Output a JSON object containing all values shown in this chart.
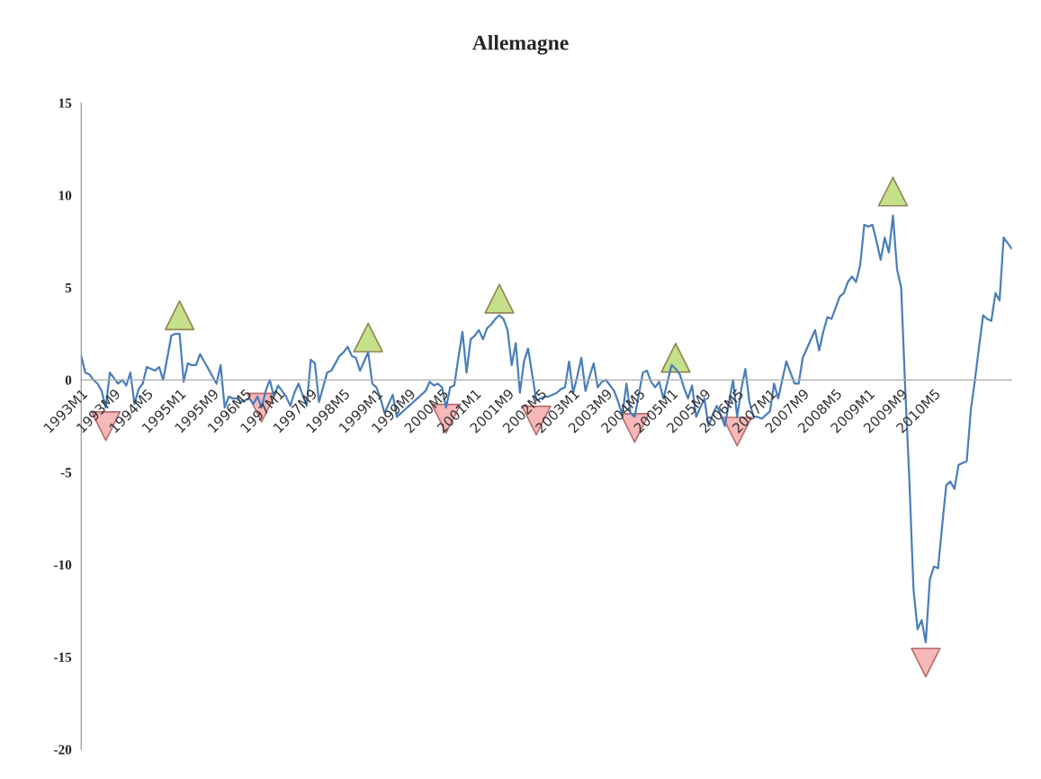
{
  "chart_data": {
    "type": "line",
    "title": "Allemagne",
    "categories": [
      "1993M1",
      null,
      null,
      null,
      null,
      null,
      null,
      null,
      "1993M9",
      null,
      null,
      null,
      null,
      null,
      null,
      null,
      "1994M5",
      null,
      null,
      null,
      null,
      null,
      null,
      null,
      "1995M1",
      null,
      null,
      null,
      null,
      null,
      null,
      null,
      "1995M9",
      null,
      null,
      null,
      null,
      null,
      null,
      null,
      "1996M5",
      null,
      null,
      null,
      null,
      null,
      null,
      null,
      "1997M1",
      null,
      null,
      null,
      null,
      null,
      null,
      null,
      "1997M9",
      null,
      null,
      null,
      null,
      null,
      null,
      null,
      "1998M5",
      null,
      null,
      null,
      null,
      null,
      null,
      null,
      "1999M1",
      null,
      null,
      null,
      null,
      null,
      null,
      null,
      "1999M9",
      null,
      null,
      null,
      null,
      null,
      null,
      null,
      "2000M5",
      null,
      null,
      null,
      null,
      null,
      null,
      null,
      "2001M1",
      null,
      null,
      null,
      null,
      null,
      null,
      null,
      "2001M9",
      null,
      null,
      null,
      null,
      null,
      null,
      null,
      "2002M5",
      null,
      null,
      null,
      null,
      null,
      null,
      null,
      "2003M1",
      null,
      null,
      null,
      null,
      null,
      null,
      null,
      "2003M9",
      null,
      null,
      null,
      null,
      null,
      null,
      null,
      "2004M5",
      null,
      null,
      null,
      null,
      null,
      null,
      null,
      "2005M1",
      null,
      null,
      null,
      null,
      null,
      null,
      null,
      "2005M9",
      null,
      null,
      null,
      null,
      null,
      null,
      null,
      "2006M5",
      null,
      null,
      null,
      null,
      null,
      null,
      null,
      "2007M1",
      null,
      null,
      null,
      null,
      null,
      null,
      null,
      "2007M9",
      null,
      null,
      null,
      null,
      null,
      null,
      null,
      "2008M5",
      null,
      null,
      null,
      null,
      null,
      null,
      null,
      "2009M1",
      null,
      null,
      null,
      null,
      null,
      null,
      null,
      "2009M9",
      null,
      null,
      null,
      null,
      null,
      null,
      null,
      "2010M5",
      null,
      null,
      null,
      null,
      null,
      null,
      null,
      null,
      null,
      null,
      null,
      null,
      null,
      null,
      null,
      null,
      null,
      null,
      null
    ],
    "series": [
      {
        "color": "#4a7ebb",
        "marker": "none",
        "line_style": "solid",
        "values": [
          1.3,
          0.4,
          0.3,
          0.0,
          -0.2,
          -0.6,
          -1.5,
          0.4,
          0.1,
          -0.2,
          0.0,
          -0.3,
          0.4,
          -1.3,
          -0.5,
          -0.2,
          0.7,
          0.6,
          0.5,
          0.7,
          0.0,
          1.2,
          2.4,
          2.5,
          2.5,
          -0.1,
          0.9,
          0.8,
          0.8,
          1.4,
          1.0,
          0.6,
          0.2,
          -0.2,
          0.8,
          -1.5,
          -0.9,
          -1.0,
          -1.0,
          -1.2,
          -1.1,
          -1.0,
          -1.3,
          -0.9,
          -1.5,
          -0.6,
          0.0,
          -0.9,
          -0.3,
          -0.6,
          -0.9,
          -1.4,
          -0.7,
          -0.2,
          -0.8,
          -1.4,
          1.1,
          0.9,
          -1.2,
          -0.4,
          0.4,
          0.5,
          0.9,
          1.3,
          1.5,
          1.8,
          1.3,
          1.2,
          0.5,
          1.0,
          1.5,
          -0.2,
          -0.4,
          -1.0,
          -1.8,
          -1.3,
          -0.8,
          -2.0,
          -1.8,
          -1.6,
          -1.4,
          -1.2,
          -1.0,
          -0.8,
          -0.6,
          -0.1,
          -0.3,
          -0.2,
          -0.4,
          -1.5,
          -0.4,
          -0.3,
          1.2,
          2.6,
          0.4,
          2.2,
          2.4,
          2.7,
          2.2,
          2.8,
          3.0,
          3.3,
          3.5,
          3.3,
          2.7,
          0.8,
          2.0,
          -0.7,
          1.0,
          1.7,
          0.3,
          -1.1,
          -1.0,
          -0.9,
          -0.9,
          -0.8,
          -0.7,
          -0.5,
          -0.4,
          1.0,
          -0.7,
          0.2,
          1.2,
          -0.6,
          0.2,
          0.9,
          -0.4,
          -0.1,
          0.0,
          -0.3,
          -0.6,
          -1.2,
          -1.9,
          -0.2,
          -1.8,
          -2.0,
          -0.8,
          0.4,
          0.5,
          -0.1,
          -0.4,
          -0.1,
          -1.0,
          -0.1,
          0.8,
          0.6,
          0.3,
          -0.4,
          -1.0,
          -0.3,
          -2.0,
          -1.5,
          -1.0,
          -2.5,
          -1.9,
          -1.4,
          -1.9,
          -2.5,
          -1.2,
          0.0,
          -2.0,
          -0.5,
          0.6,
          -1.2,
          -2.0,
          -2.0,
          -2.1,
          -1.9,
          -1.7,
          -0.2,
          -1.0,
          0.0,
          1.0,
          0.4,
          -0.2,
          -0.2,
          1.2,
          1.7,
          2.2,
          2.7,
          1.6,
          2.6,
          3.4,
          3.3,
          3.9,
          4.5,
          4.7,
          5.3,
          5.6,
          5.3,
          6.2,
          8.4,
          8.3,
          8.4,
          7.5,
          6.5,
          7.7,
          6.9,
          8.9,
          6.0,
          5.0,
          -0.5,
          -5.4,
          -11.3,
          -13.5,
          -13.0,
          -14.2,
          -10.8,
          -10.1,
          -10.2,
          -7.9,
          -5.7,
          -5.5,
          -5.9,
          -4.6,
          -4.5,
          -4.4,
          -1.6,
          0.0,
          1.8,
          3.5,
          3.3,
          3.2,
          4.7,
          4.3,
          7.7,
          7.4,
          7.1
        ]
      },
      {
        "type": "scatter",
        "color": "#c4e08a",
        "marker": "triangle",
        "values": [
          null,
          null,
          null,
          null,
          null,
          null,
          null,
          null,
          null,
          null,
          null,
          null,
          null,
          null,
          null,
          null,
          null,
          null,
          null,
          null,
          null,
          null,
          null,
          null,
          3.5,
          null,
          null,
          null,
          null,
          null,
          null,
          null,
          null,
          null,
          null,
          null,
          null,
          null,
          null,
          null,
          null,
          null,
          null,
          null,
          null,
          null,
          null,
          null,
          null,
          null,
          null,
          null,
          null,
          null,
          null,
          null,
          null,
          null,
          null,
          null,
          null,
          null,
          null,
          null,
          null,
          null,
          null,
          null,
          null,
          null,
          2.3,
          null,
          null,
          null,
          null,
          null,
          null,
          null,
          null,
          null,
          null,
          null,
          null,
          null,
          null,
          null,
          null,
          null,
          null,
          null,
          null,
          null,
          null,
          null,
          null,
          null,
          null,
          null,
          null,
          null,
          null,
          null,
          4.4,
          null,
          null,
          null,
          null,
          null,
          null,
          null,
          null,
          null,
          null,
          null,
          null,
          null,
          null,
          null,
          null,
          null,
          null,
          null,
          null,
          null,
          null,
          null,
          null,
          null,
          null,
          null,
          null,
          null,
          null,
          null,
          null,
          null,
          null,
          null,
          null,
          null,
          null,
          null,
          null,
          null,
          null,
          1.2,
          null,
          null,
          null,
          null,
          null,
          null,
          null,
          null,
          null,
          null,
          null,
          null,
          null,
          null,
          null,
          null,
          null,
          null,
          null,
          null,
          null,
          null,
          null,
          null,
          null,
          null,
          null,
          null,
          null,
          null,
          null,
          null,
          null,
          null,
          null,
          null,
          null,
          null,
          null,
          null,
          null,
          null,
          null,
          null,
          null,
          null,
          null,
          null,
          null,
          null,
          null,
          null,
          10.2,
          null,
          null,
          null,
          null,
          null,
          null,
          null,
          null,
          null,
          null,
          null,
          null,
          null,
          null,
          null,
          null,
          null,
          null,
          null,
          null,
          null,
          null,
          null,
          null,
          null,
          null,
          null,
          null,
          null
        ]
      },
      {
        "type": "scatter",
        "color": "#f7b8b8",
        "marker": "triangle_down",
        "values": [
          null,
          null,
          null,
          null,
          null,
          null,
          -2.5,
          null,
          null,
          null,
          null,
          null,
          null,
          null,
          null,
          null,
          null,
          null,
          null,
          null,
          null,
          null,
          null,
          null,
          null,
          null,
          null,
          null,
          null,
          null,
          null,
          null,
          null,
          null,
          null,
          null,
          null,
          null,
          null,
          null,
          null,
          null,
          null,
          null,
          -1.5,
          null,
          null,
          null,
          null,
          null,
          null,
          null,
          null,
          null,
          null,
          null,
          null,
          null,
          null,
          null,
          null,
          null,
          null,
          null,
          null,
          null,
          null,
          null,
          null,
          null,
          null,
          null,
          null,
          null,
          null,
          null,
          null,
          null,
          null,
          null,
          null,
          null,
          null,
          null,
          null,
          null,
          null,
          null,
          null,
          -2.1,
          null,
          null,
          null,
          null,
          null,
          null,
          null,
          null,
          null,
          null,
          null,
          null,
          null,
          null,
          null,
          null,
          null,
          null,
          null,
          null,
          null,
          -2.2,
          null,
          null,
          null,
          null,
          null,
          null,
          null,
          null,
          null,
          null,
          null,
          null,
          null,
          null,
          null,
          null,
          null,
          null,
          null,
          null,
          null,
          null,
          null,
          -2.6,
          null,
          null,
          null,
          null,
          null,
          null,
          null,
          null,
          null,
          null,
          null,
          null,
          null,
          null,
          null,
          null,
          null,
          null,
          null,
          null,
          null,
          null,
          null,
          null,
          -2.8,
          null,
          null,
          null,
          null,
          null,
          null,
          null,
          null,
          null,
          null,
          null,
          null,
          null,
          null,
          null,
          null,
          null,
          null,
          null,
          null,
          null,
          null,
          null,
          null,
          null,
          null,
          null,
          null,
          null,
          null,
          null,
          null,
          null,
          null,
          null,
          null,
          null,
          null,
          null,
          null,
          null,
          null,
          null,
          null,
          null,
          -15.3,
          null,
          null,
          null,
          null,
          null,
          null,
          null,
          null,
          null,
          null,
          null,
          null,
          null,
          null,
          null,
          null,
          null,
          null,
          null,
          null,
          null
        ]
      }
    ],
    "ylim": [
      -20,
      15
    ],
    "yticks": [
      -20,
      -15,
      -10,
      -5,
      0,
      5,
      10,
      15
    ],
    "grid": false,
    "legend": false
  }
}
